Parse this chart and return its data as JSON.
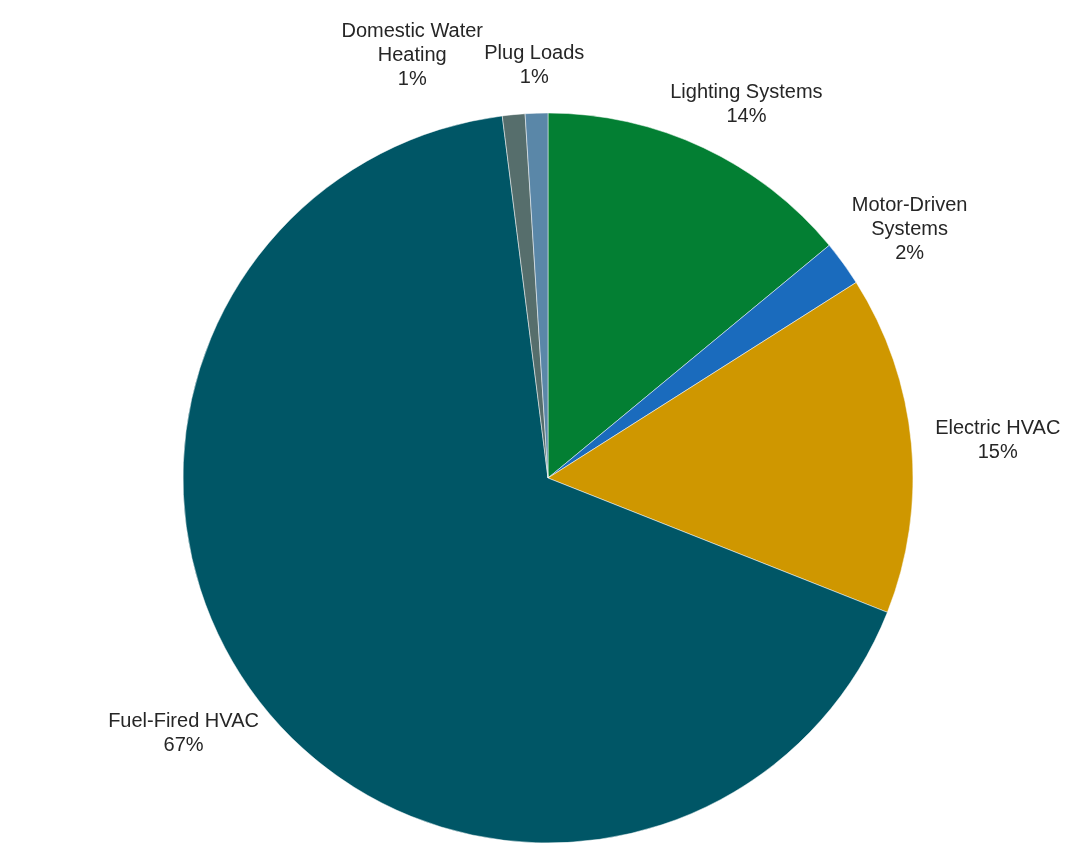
{
  "chart_data": {
    "type": "pie",
    "categories": [
      "Lighting Systems",
      "Motor-Driven Systems",
      "Electric HVAC",
      "Fuel-Fired HVAC",
      "Domestic Water Heating",
      "Plug Loads"
    ],
    "values": [
      14,
      2,
      15,
      67,
      1,
      1
    ],
    "colors": [
      "#037f33",
      "#1a6bbd",
      "#cf9700",
      "#005666",
      "#566e6c",
      "#5a87a8"
    ],
    "value_labels": [
      "14%",
      "2%",
      "15%",
      "67%",
      "1%",
      "1%"
    ]
  }
}
